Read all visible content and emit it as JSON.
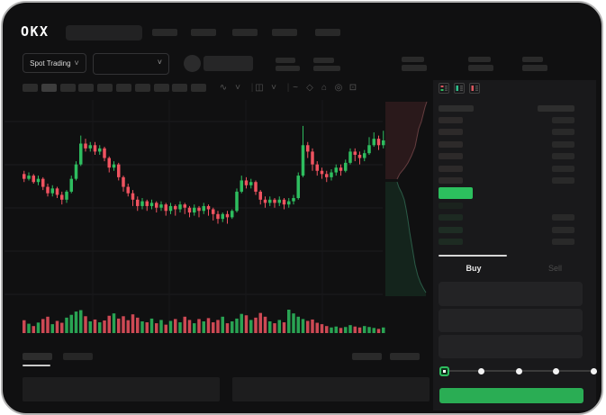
{
  "glyphs": {
    "chevron_down": "˅"
  },
  "header": {
    "logo": "OKX",
    "market_dropdown_label": "Spot Trading"
  },
  "chart_toolbar": {
    "icons": [
      {
        "name": "chart-style-icon",
        "glyph": "∿"
      },
      {
        "name": "chevron-down-icon",
        "glyph": "˅"
      },
      {
        "name": "divider",
        "glyph": "|"
      },
      {
        "name": "indicators-icon",
        "glyph": "◫"
      },
      {
        "name": "chevron-down-icon",
        "glyph": "˅"
      },
      {
        "name": "divider",
        "glyph": "|"
      },
      {
        "name": "trendline-icon",
        "glyph": "~"
      },
      {
        "name": "measure-icon",
        "glyph": "◇"
      },
      {
        "name": "screenshot-icon",
        "glyph": "⌂"
      },
      {
        "name": "settings-icon",
        "glyph": "◎"
      },
      {
        "name": "fullscreen-icon",
        "glyph": "⊡"
      }
    ]
  },
  "order_book": {
    "mode_icons": [
      "orderbook-combined-icon",
      "orderbook-bids-icon",
      "orderbook-asks-icon"
    ],
    "asks": [
      {
        "right_bar": true
      },
      {
        "right_bar": true
      },
      {
        "right_bar": true
      },
      {
        "right_bar": true
      },
      {
        "right_bar": true
      },
      {
        "right_bar": true
      }
    ],
    "bids": [
      {
        "right_bar": false
      },
      {
        "right_bar": true
      },
      {
        "right_bar": true
      },
      {
        "right_bar": true
      }
    ],
    "last_price_highlight_color": "#2cc05e"
  },
  "trade_panel": {
    "buy_tab_label": "Buy",
    "sell_tab_label": "Sell",
    "slider": {
      "stops_percent": [
        0,
        25,
        50,
        75,
        100
      ],
      "active_percent": 0
    },
    "buy_button_color": "#2aad54"
  },
  "colors": {
    "up_green": "#2ebd5f",
    "down_red": "#ef5360",
    "accent_green": "#2aad54"
  },
  "chart_data": [
    {
      "type": "candlestick",
      "title": "",
      "xlabel": "",
      "ylabel": "",
      "units": "relative 0-100 price scale, estimated from pixels (no axis labels visible)",
      "candles_format": "[open, close, low, high]",
      "candles": [
        [
          56,
          53,
          51,
          58
        ],
        [
          53,
          55,
          52,
          57
        ],
        [
          55,
          51,
          50,
          56
        ],
        [
          51,
          53,
          49,
          55
        ],
        [
          53,
          48,
          46,
          54
        ],
        [
          48,
          44,
          42,
          50
        ],
        [
          44,
          47,
          42,
          49
        ],
        [
          47,
          43,
          41,
          48
        ],
        [
          43,
          40,
          37,
          45
        ],
        [
          40,
          45,
          38,
          46
        ],
        [
          45,
          53,
          44,
          55
        ],
        [
          53,
          62,
          52,
          64
        ],
        [
          62,
          75,
          61,
          80
        ],
        [
          75,
          72,
          70,
          78
        ],
        [
          72,
          74,
          70,
          76
        ],
        [
          74,
          70,
          68,
          76
        ],
        [
          70,
          72,
          68,
          74
        ],
        [
          72,
          66,
          64,
          73
        ],
        [
          66,
          60,
          57,
          67
        ],
        [
          60,
          62,
          58,
          64
        ],
        [
          62,
          54,
          52,
          63
        ],
        [
          54,
          48,
          45,
          55
        ],
        [
          48,
          44,
          42,
          50
        ],
        [
          44,
          40,
          36,
          46
        ],
        [
          40,
          36,
          33,
          42
        ],
        [
          36,
          39,
          34,
          41
        ],
        [
          39,
          36,
          33,
          40
        ],
        [
          36,
          38,
          34,
          40
        ],
        [
          38,
          35,
          32,
          39
        ],
        [
          35,
          37,
          33,
          39
        ],
        [
          37,
          33,
          30,
          38
        ],
        [
          33,
          36,
          31,
          38
        ],
        [
          36,
          34,
          30,
          37
        ],
        [
          34,
          37,
          32,
          39
        ],
        [
          37,
          35,
          31,
          38
        ],
        [
          35,
          32,
          29,
          36
        ],
        [
          32,
          35,
          30,
          37
        ],
        [
          35,
          33,
          29,
          36
        ],
        [
          33,
          36,
          31,
          38
        ],
        [
          36,
          34,
          30,
          37
        ],
        [
          34,
          31,
          27,
          35
        ],
        [
          31,
          28,
          25,
          33
        ],
        [
          28,
          31,
          26,
          32
        ],
        [
          31,
          29,
          25,
          33
        ],
        [
          29,
          33,
          28,
          34
        ],
        [
          33,
          45,
          32,
          47
        ],
        [
          45,
          52,
          44,
          55
        ],
        [
          52,
          49,
          47,
          54
        ],
        [
          49,
          51,
          47,
          53
        ],
        [
          51,
          45,
          43,
          52
        ],
        [
          45,
          40,
          37,
          46
        ],
        [
          40,
          38,
          35,
          42
        ],
        [
          38,
          40,
          36,
          42
        ],
        [
          40,
          38,
          35,
          41
        ],
        [
          38,
          40,
          36,
          42
        ],
        [
          40,
          37,
          34,
          41
        ],
        [
          37,
          39,
          35,
          41
        ],
        [
          39,
          41,
          37,
          43
        ],
        [
          41,
          55,
          40,
          57
        ],
        [
          55,
          74,
          54,
          86
        ],
        [
          74,
          70,
          66,
          76
        ],
        [
          70,
          62,
          58,
          72
        ],
        [
          62,
          58,
          55,
          64
        ],
        [
          58,
          56,
          53,
          60
        ],
        [
          56,
          54,
          51,
          58
        ],
        [
          54,
          57,
          52,
          59
        ],
        [
          57,
          60,
          55,
          62
        ],
        [
          60,
          58,
          55,
          62
        ],
        [
          58,
          63,
          57,
          65
        ],
        [
          63,
          70,
          62,
          72
        ],
        [
          70,
          68,
          64,
          72
        ],
        [
          68,
          66,
          62,
          70
        ],
        [
          66,
          69,
          64,
          71
        ],
        [
          69,
          74,
          68,
          79
        ],
        [
          74,
          78,
          73,
          82
        ],
        [
          78,
          74,
          71,
          80
        ],
        [
          74,
          77,
          72,
          83
        ]
      ],
      "volume": [
        55,
        40,
        30,
        45,
        60,
        70,
        38,
        52,
        44,
        66,
        78,
        92,
        98,
        72,
        50,
        58,
        46,
        54,
        74,
        84,
        62,
        72,
        55,
        80,
        66,
        50,
        46,
        62,
        42,
        56,
        36,
        52,
        60,
        46,
        70,
        56,
        42,
        60,
        50,
        64,
        46,
        56,
        70,
        42,
        50,
        62,
        82,
        76,
        56,
        66,
        86,
        70,
        50,
        42,
        56,
        46,
        100,
        84,
        70,
        60,
        52,
        58,
        44,
        38,
        30,
        24,
        28,
        22,
        26,
        34,
        28,
        24,
        30,
        26,
        22,
        18,
        24
      ],
      "grid": "faint horizontal gridlines, no visible tick labels"
    },
    {
      "type": "area",
      "name": "orderbook-depth-silhouette",
      "units": "relative px within 53x222 region, estimated",
      "ask_curve": [
        [
          46,
          2
        ],
        [
          44,
          8
        ],
        [
          42,
          16
        ],
        [
          40,
          24
        ],
        [
          37,
          32
        ],
        [
          35,
          42
        ],
        [
          33,
          52
        ],
        [
          29,
          62
        ],
        [
          25,
          70
        ],
        [
          21,
          76
        ],
        [
          16,
          82
        ],
        [
          13,
          88
        ]
      ],
      "bid_curve": [
        [
          13,
          91
        ],
        [
          15,
          97
        ],
        [
          18,
          103
        ],
        [
          21,
          111
        ],
        [
          23,
          121
        ],
        [
          25,
          133
        ],
        [
          27,
          147
        ],
        [
          29,
          159
        ],
        [
          31,
          171
        ],
        [
          33,
          183
        ],
        [
          36,
          195
        ],
        [
          39,
          203
        ],
        [
          42,
          209
        ],
        [
          45,
          214
        ]
      ]
    }
  ]
}
